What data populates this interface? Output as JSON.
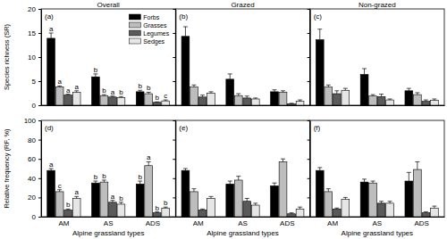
{
  "chart_data": [
    {
      "type": "bar",
      "title": "Overall",
      "annotations": [
        "(a)"
      ],
      "y_label": "Species richness (SR)",
      "categories": [
        "AM",
        "AS",
        "ADS"
      ],
      "ylim": [
        0,
        20
      ],
      "yticks": [
        0,
        5,
        10,
        15,
        20
      ],
      "tick_labels": "y",
      "legend": "upper right",
      "series": [
        {
          "name": "Forbs",
          "color": "#000000",
          "values": [
            13.9,
            5.9,
            2.8
          ],
          "errors": [
            1.1,
            0.6,
            0.3
          ],
          "annotations": [
            "a",
            "b",
            "b"
          ]
        },
        {
          "name": "Grasses",
          "color": "#bdbdbd",
          "values": [
            3.8,
            2.0,
            2.4
          ],
          "errors": [
            0.2,
            0.2,
            0.3
          ],
          "annotations": [
            "a",
            "b",
            "b"
          ]
        },
        {
          "name": "Legumes",
          "color": "#5a5a5a",
          "values": [
            2.1,
            1.7,
            0.6
          ],
          "errors": [
            0.2,
            0.2,
            0.1
          ],
          "annotations": [
            "a",
            "a",
            "b"
          ]
        },
        {
          "name": "Sedges",
          "color": "#e6e6e6",
          "values": [
            2.7,
            1.6,
            0.9
          ],
          "errors": [
            0.3,
            0.2,
            0.2
          ],
          "annotations": [
            "a",
            "b",
            "c"
          ]
        }
      ]
    },
    {
      "type": "bar",
      "title": "Grazed",
      "annotations": [
        "(b)"
      ],
      "categories": [
        "AM",
        "AS",
        "ADS"
      ],
      "ylim": [
        0,
        20
      ],
      "yticks": [
        0,
        5,
        10,
        15,
        20
      ],
      "tick_labels": false,
      "legend": false,
      "series": [
        {
          "name": "Forbs",
          "color": "#000000",
          "values": [
            14.3,
            5.4,
            2.8
          ],
          "errors": [
            2.0,
            1.1,
            0.4
          ]
        },
        {
          "name": "Grasses",
          "color": "#bdbdbd",
          "values": [
            3.8,
            2.0,
            2.7
          ],
          "errors": [
            0.4,
            0.4,
            0.3
          ]
        },
        {
          "name": "Legumes",
          "color": "#5a5a5a",
          "values": [
            1.7,
            1.5,
            0.3
          ],
          "errors": [
            0.4,
            0.4,
            0.1
          ]
        },
        {
          "name": "Sedges",
          "color": "#e6e6e6",
          "values": [
            2.5,
            1.3,
            0.8
          ],
          "errors": [
            0.3,
            0.2,
            0.3
          ]
        }
      ]
    },
    {
      "type": "bar",
      "title": "Non-grazed",
      "annotations": [
        "(c)"
      ],
      "categories": [
        "AM",
        "AS",
        "ADS"
      ],
      "ylim": [
        0,
        20
      ],
      "yticks": [
        0,
        5,
        10,
        15,
        20
      ],
      "tick_labels": false,
      "legend": false,
      "series": [
        {
          "name": "Forbs",
          "color": "#000000",
          "values": [
            13.6,
            6.4,
            3.0
          ],
          "errors": [
            2.2,
            1.2,
            0.5
          ]
        },
        {
          "name": "Grasses",
          "color": "#bdbdbd",
          "values": [
            3.8,
            1.9,
            2.2
          ],
          "errors": [
            0.4,
            0.3,
            0.4
          ]
        },
        {
          "name": "Legumes",
          "color": "#5a5a5a",
          "values": [
            2.4,
            1.8,
            0.8
          ],
          "errors": [
            0.6,
            0.5,
            0.3
          ]
        },
        {
          "name": "Sedges",
          "color": "#e6e6e6",
          "values": [
            3.1,
            1.1,
            1.0
          ],
          "errors": [
            0.4,
            0.2,
            0.3
          ]
        }
      ]
    },
    {
      "type": "bar",
      "annotations": [
        "(d)"
      ],
      "y_label": "Relative frequency (RF, %)",
      "x_label": "Alpine grassland types",
      "categories": [
        "AM",
        "AS",
        "ADS"
      ],
      "ylim": [
        0,
        100
      ],
      "yticks": [
        0,
        20,
        40,
        60,
        80,
        100
      ],
      "tick_labels": true,
      "legend": false,
      "series": [
        {
          "name": "Forbs",
          "color": "#000000",
          "values": [
            48,
            35,
            34
          ],
          "errors": [
            2,
            2,
            3
          ],
          "annotations": [
            "a",
            "b",
            "b"
          ]
        },
        {
          "name": "Grasses",
          "color": "#bdbdbd",
          "values": [
            26,
            36,
            53
          ],
          "errors": [
            2,
            2,
            4
          ],
          "annotations": [
            "c",
            "b",
            "a"
          ]
        },
        {
          "name": "Legumes",
          "color": "#5a5a5a",
          "values": [
            7,
            15,
            4
          ],
          "errors": [
            1,
            2,
            1
          ],
          "annotations": [
            "b",
            "a",
            "b"
          ]
        },
        {
          "name": "Sedges",
          "color": "#e6e6e6",
          "values": [
            19,
            13,
            9
          ],
          "errors": [
            2,
            2,
            1
          ],
          "annotations": [
            "a",
            "b",
            "b"
          ]
        }
      ]
    },
    {
      "type": "bar",
      "annotations": [
        "(e)"
      ],
      "x_label": "Alpine grassland types",
      "categories": [
        "AM",
        "AS",
        "ADS"
      ],
      "ylim": [
        0,
        100
      ],
      "yticks": [
        0,
        20,
        40,
        60,
        80,
        100
      ],
      "tick_labels": "x",
      "legend": false,
      "series": [
        {
          "name": "Forbs",
          "color": "#000000",
          "values": [
            48,
            34,
            32
          ],
          "errors": [
            2,
            3,
            3
          ]
        },
        {
          "name": "Grasses",
          "color": "#bdbdbd",
          "values": [
            26,
            38,
            57
          ],
          "errors": [
            3,
            4,
            3
          ]
        },
        {
          "name": "Legumes",
          "color": "#5a5a5a",
          "values": [
            7,
            16,
            3
          ],
          "errors": [
            1,
            3,
            1
          ]
        },
        {
          "name": "Sedges",
          "color": "#e6e6e6",
          "values": [
            19,
            12,
            8
          ],
          "errors": [
            2,
            2,
            2
          ]
        }
      ]
    },
    {
      "type": "bar",
      "annotations": [
        "(f)"
      ],
      "x_label": "Alpine grassland types",
      "categories": [
        "AM",
        "AS",
        "ADS"
      ],
      "ylim": [
        0,
        100
      ],
      "yticks": [
        0,
        20,
        40,
        60,
        80,
        100
      ],
      "tick_labels": "x",
      "legend": false,
      "series": [
        {
          "name": "Forbs",
          "color": "#000000",
          "values": [
            48,
            36,
            37
          ],
          "errors": [
            3,
            3,
            9
          ]
        },
        {
          "name": "Grasses",
          "color": "#bdbdbd",
          "values": [
            26,
            35,
            49
          ],
          "errors": [
            3,
            2,
            8
          ]
        },
        {
          "name": "Legumes",
          "color": "#5a5a5a",
          "values": [
            8,
            14,
            4
          ],
          "errors": [
            1,
            2,
            1
          ]
        },
        {
          "name": "Sedges",
          "color": "#e6e6e6",
          "values": [
            18,
            14,
            9
          ],
          "errors": [
            2,
            2,
            2
          ]
        }
      ]
    }
  ]
}
